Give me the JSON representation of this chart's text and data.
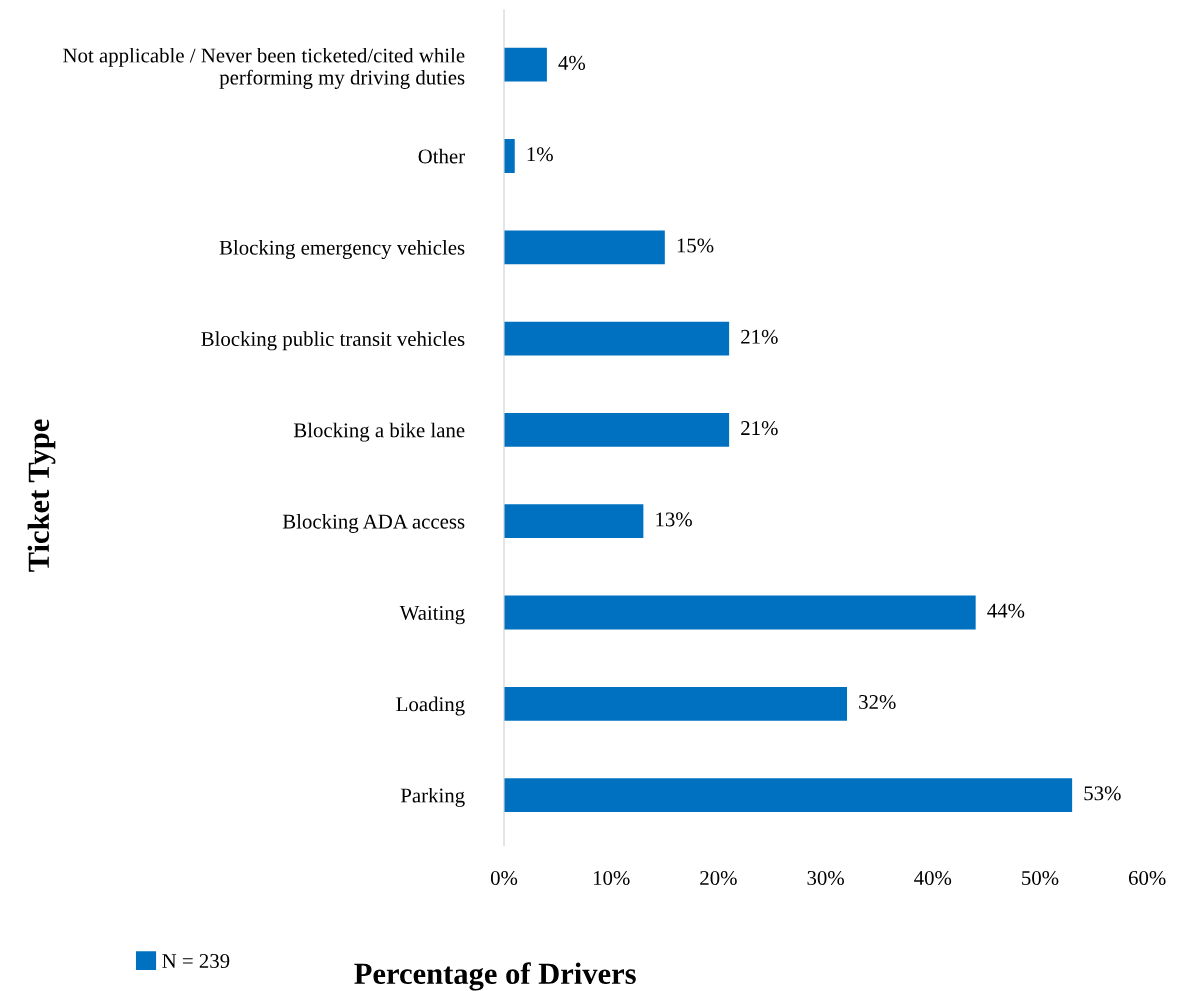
{
  "chart_data": {
    "type": "bar",
    "orientation": "horizontal",
    "xlabel": "Percentage of Drivers",
    "ylabel": "Ticket Type",
    "categories": [
      "Not applicable / Never been ticketed/cited while\nperforming my driving duties",
      "Other",
      "Blocking emergency vehicles",
      "Blocking public transit vehicles",
      "Blocking a bike lane",
      "Blocking ADA access",
      "Waiting",
      "Loading",
      "Parking"
    ],
    "series": [
      {
        "name": "N = 239",
        "color": "#0070c0",
        "values": [
          4,
          1,
          15,
          21,
          21,
          13,
          44,
          32,
          53
        ],
        "value_labels": [
          "4%",
          "1%",
          "15%",
          "21%",
          "21%",
          "13%",
          "44%",
          "32%",
          "53%"
        ]
      }
    ],
    "xlim": [
      0,
      60
    ],
    "xticks": [
      {
        "value": 0,
        "label": "0%"
      },
      {
        "value": 10,
        "label": "10%"
      },
      {
        "value": 20,
        "label": "20%"
      },
      {
        "value": 30,
        "label": "30%"
      },
      {
        "value": 40,
        "label": "40%"
      },
      {
        "value": 50,
        "label": "50%"
      },
      {
        "value": 60,
        "label": "60%"
      }
    ],
    "grid": false,
    "legend": "bottom left"
  }
}
